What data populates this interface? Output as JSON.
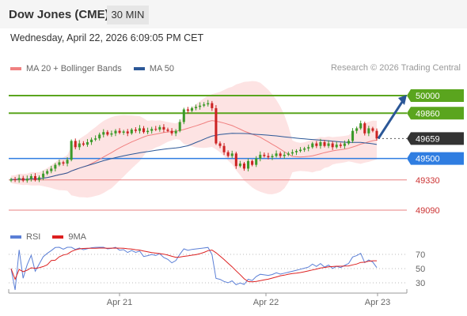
{
  "header": {
    "title": "Dow Jones (CME)",
    "timeframe": "30 MIN"
  },
  "datetime": "Wednesday, April 22, 2026 6:09:05 PM CET",
  "legend": {
    "ma20_label": "MA 20 + Bollinger Bands",
    "ma50_label": "MA 50",
    "copyright": "Research © 2026 Trading Central"
  },
  "rsi_legend": {
    "rsi_label": "RSI",
    "ma_label": "9MA"
  },
  "colors": {
    "resistance": "#5aa51e",
    "support": "#2f7de1",
    "support_minor": "#e88080",
    "ma20": "#f08080",
    "ma50": "#2b5797",
    "bollinger": "#fde3e3",
    "candle_up": "#3c9a2a",
    "candle_down": "#cc2222",
    "current": "#333333",
    "rsi": "#5b7fd6",
    "rsi_ma": "#dd2020",
    "arrow": "#2b5797"
  },
  "chart_data": {
    "type": "candlestick",
    "x_ticks": [
      "Apr 21",
      "Apr 22",
      "Apr 23"
    ],
    "levels": [
      {
        "value": 50000,
        "label": "50000",
        "kind": "resistance"
      },
      {
        "value": 49860,
        "label": "49860",
        "kind": "resistance"
      },
      {
        "value": 49659,
        "label": "49659",
        "kind": "current"
      },
      {
        "value": 49500,
        "label": "49500",
        "kind": "support"
      },
      {
        "value": 49330,
        "label": "49330",
        "kind": "support_minor"
      },
      {
        "value": 49090,
        "label": "49090",
        "kind": "support_minor"
      }
    ],
    "price_range": [
      49090,
      50000
    ],
    "closes": [
      49335,
      49330,
      49345,
      49325,
      49340,
      49360,
      49330,
      49350,
      49380,
      49400,
      49420,
      49450,
      49470,
      49460,
      49490,
      49640,
      49590,
      49620,
      49610,
      49630,
      49650,
      49660,
      49690,
      49710,
      49690,
      49700,
      49720,
      49705,
      49715,
      49700,
      49730,
      49720,
      49740,
      49710,
      49720,
      49735,
      49730,
      49750,
      49730,
      49720,
      49700,
      49720,
      49790,
      49890,
      49880,
      49900,
      49910,
      49920,
      49930,
      49940,
      49900,
      49620,
      49600,
      49550,
      49520,
      49540,
      49440,
      49460,
      49420,
      49480,
      49450,
      49500,
      49530,
      49520,
      49510,
      49520,
      49540,
      49520,
      49530,
      49540,
      49550,
      49560,
      49570,
      49580,
      49590,
      49620,
      49600,
      49630,
      49600,
      49620,
      49590,
      49610,
      49600,
      49620,
      49640,
      49720,
      49740,
      49780,
      49700,
      49740,
      49720,
      49659
    ],
    "rsi": {
      "ticks": [
        70,
        50,
        30
      ],
      "range": [
        20,
        80
      ]
    },
    "annotation": "up arrow toward 50000"
  }
}
